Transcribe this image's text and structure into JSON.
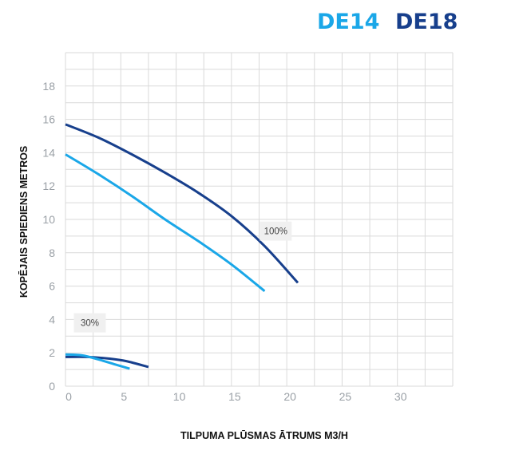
{
  "chart_data": {
    "type": "line",
    "xlabel": "TILPUMA PLŪSMAS ĀTRUMS M3/H",
    "ylabel": "KOPĒJAIS SPIEDIENS METROS",
    "xlim": [
      0,
      35
    ],
    "ylim": [
      0,
      20
    ],
    "x_ticks": [
      0,
      5,
      10,
      15,
      20,
      25,
      30
    ],
    "y_ticks": [
      0,
      2,
      4,
      6,
      8,
      10,
      12,
      14,
      16,
      18
    ],
    "grid": true,
    "legend": [
      {
        "label": "DE14",
        "color": "#1aa7e8"
      },
      {
        "label": "DE18",
        "color": "#173f8c"
      }
    ],
    "annotations": [
      {
        "text": "100%",
        "x": 19,
        "y": 9.3
      },
      {
        "text": "30%",
        "x": 2.2,
        "y": 3.8
      }
    ],
    "series": [
      {
        "legend": "DE18",
        "speed": "100%",
        "color": "#173f8c",
        "points": [
          [
            0,
            15.7
          ],
          [
            3,
            14.9
          ],
          [
            6,
            13.9
          ],
          [
            9,
            12.8
          ],
          [
            12,
            11.6
          ],
          [
            15,
            10.2
          ],
          [
            18,
            8.4
          ],
          [
            21,
            6.2
          ]
        ]
      },
      {
        "legend": "DE14",
        "speed": "100%",
        "color": "#1aa7e8",
        "points": [
          [
            0,
            13.9
          ],
          [
            3,
            12.7
          ],
          [
            6,
            11.4
          ],
          [
            9,
            10.0
          ],
          [
            12,
            8.7
          ],
          [
            15,
            7.3
          ],
          [
            18,
            5.7
          ]
        ]
      },
      {
        "legend": "DE18",
        "speed": "30%",
        "color": "#173f8c",
        "points": [
          [
            0,
            1.75
          ],
          [
            2,
            1.75
          ],
          [
            4,
            1.65
          ],
          [
            5.5,
            1.5
          ],
          [
            7.5,
            1.15
          ]
        ]
      },
      {
        "legend": "DE14",
        "speed": "30%",
        "color": "#1aa7e8",
        "points": [
          [
            0,
            1.9
          ],
          [
            1.5,
            1.85
          ],
          [
            3,
            1.6
          ],
          [
            4.5,
            1.3
          ],
          [
            5.8,
            1.05
          ]
        ]
      }
    ]
  }
}
